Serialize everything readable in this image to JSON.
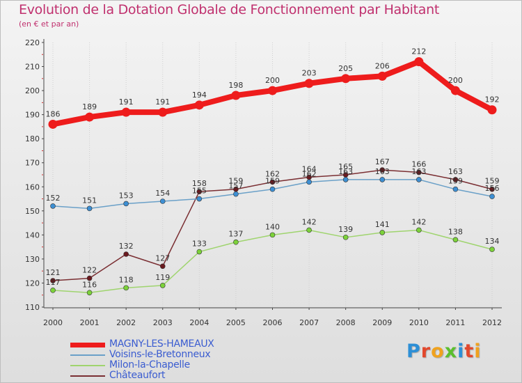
{
  "title": "Evolution de la Dotation Globale de Fonctionnement par Habitant",
  "subtitle": "(en € et par an)",
  "logo": {
    "text": "Proxiti",
    "letters": [
      {
        "ch": "P",
        "color": "#2d8fd6"
      },
      {
        "ch": "r",
        "color": "#e2482d"
      },
      {
        "ch": "o",
        "color": "#f0a21e"
      },
      {
        "ch": "x",
        "color": "#5bbf2e"
      },
      {
        "ch": "i",
        "color": "#2d8fd6"
      },
      {
        "ch": "t",
        "color": "#e2482d"
      },
      {
        "ch": "i",
        "color": "#f0a21e"
      }
    ]
  },
  "chart_data": {
    "type": "line",
    "title": "Evolution de la Dotation Globale de Fonctionnement par Habitant",
    "subtitle": "(en € et par an)",
    "xlabel": "",
    "ylabel": "",
    "x": [
      2000,
      2001,
      2002,
      2003,
      2004,
      2005,
      2006,
      2007,
      2008,
      2009,
      2010,
      2011,
      2012
    ],
    "ylim": [
      110,
      220
    ],
    "yticks": [
      110,
      120,
      130,
      140,
      150,
      160,
      170,
      180,
      190,
      200,
      210,
      220
    ],
    "grid": "vertical",
    "legend_position": "bottom-left",
    "series": [
      {
        "name": "MAGNY-LES-HAMEAUX",
        "color": "#ee1c1c",
        "marker_color": "#ee1c1c",
        "label_color": "#333333",
        "values": [
          186,
          189,
          191,
          191,
          194,
          198,
          200,
          203,
          205,
          206,
          212,
          200,
          192
        ]
      },
      {
        "name": "Voisins-le-Bretonneux",
        "color": "#6aa0c8",
        "marker_color": "#3d8fd3",
        "label_color": "#333333",
        "values": [
          152,
          151,
          153,
          154,
          155,
          157,
          159,
          162,
          163,
          163,
          163,
          159,
          156
        ]
      },
      {
        "name": "Milon-la-Chapelle",
        "color": "#9fd46e",
        "marker_color": "#7cd23a",
        "label_color": "#333333",
        "values": [
          117,
          116,
          118,
          119,
          133,
          137,
          140,
          142,
          139,
          141,
          142,
          138,
          134
        ]
      },
      {
        "name": "Châteaufort",
        "color": "#7a2e32",
        "marker_color": "#6a1a1f",
        "label_color": "#333333",
        "values": [
          121,
          122,
          132,
          127,
          158,
          159,
          162,
          164,
          165,
          167,
          166,
          163,
          159
        ]
      }
    ]
  }
}
